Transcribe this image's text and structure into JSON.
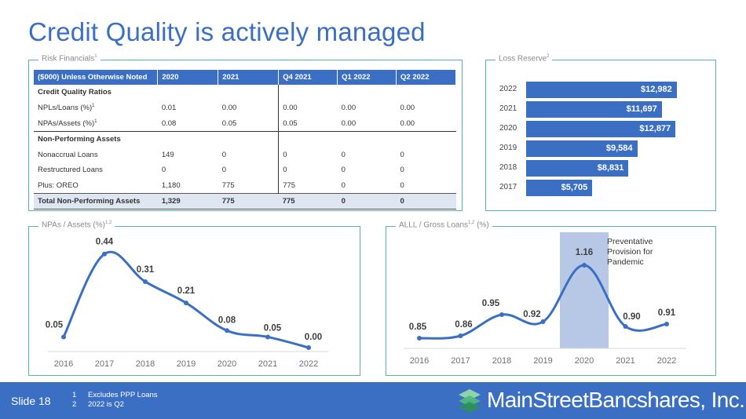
{
  "page": {
    "title": "Credit Quality is actively managed"
  },
  "risk_financials": {
    "label": "Risk Financials",
    "label_sup": "1",
    "headers": [
      "($000) Unless Otherwise Noted",
      "2020",
      "2021",
      "Q4 2021",
      "Q1 2022",
      "Q2 2022"
    ],
    "section1": "Credit Quality Ratios",
    "rows1": [
      {
        "label": "NPLs/Loans (%)",
        "sup": "1",
        "values": [
          "0.01",
          "0.00",
          "0.00",
          "0.00",
          "0.00"
        ]
      },
      {
        "label": "NPAs/Assets (%)",
        "sup": "1",
        "values": [
          "0.08",
          "0.05",
          "0.05",
          "0.00",
          "0.00"
        ]
      }
    ],
    "section2": "Non-Performing Assets",
    "rows2": [
      {
        "label": "Nonaccrual Loans",
        "values": [
          "149",
          "0",
          "0",
          "0",
          "0"
        ]
      },
      {
        "label": "Restructured Loans",
        "values": [
          "0",
          "0",
          "0",
          "0",
          "0"
        ]
      },
      {
        "label": "Plus: OREO",
        "values": [
          "1,180",
          "775",
          "775",
          "0",
          "0"
        ]
      }
    ],
    "total": {
      "label": "Total Non-Performing Assets",
      "values": [
        "1,329",
        "775",
        "775",
        "0",
        "0"
      ]
    }
  },
  "loss_reserve": {
    "label": "Loss Reserve",
    "label_sup": "2"
  },
  "npa_panel": {
    "label": "NPAs / Assets (%)",
    "label_sup": "1,2"
  },
  "alll_panel": {
    "label": "ALLL / Gross Loans",
    "label_sup": "1,2",
    "label_suffix": " (%)",
    "annotation": [
      "Preventative",
      "Provision for",
      "Pandemic"
    ]
  },
  "footer": {
    "slide": "Slide 18",
    "notes": [
      {
        "num": "1",
        "text": "Excludes PPP Loans"
      },
      {
        "num": "2",
        "text": "2022 is Q2"
      }
    ],
    "brand": "MainStreetBancshares, Inc."
  },
  "colors": {
    "accent": "#3a6fc4",
    "panel_border": "#5cb79a",
    "highlight": "#b7c8e6",
    "footer": "#3a6fc4"
  },
  "chart_data": [
    {
      "type": "bar",
      "orientation": "horizontal",
      "categories": [
        "2022",
        "2021",
        "2020",
        "2019",
        "2018",
        "2017"
      ],
      "values": [
        12982,
        11697,
        12877,
        9584,
        8831,
        5705
      ],
      "labels": [
        "$12,982",
        "$11,697",
        "$12,877",
        "$9,584",
        "$8,831",
        "$5,705"
      ],
      "title": "Loss Reserve",
      "xlim": [
        0,
        13000
      ]
    },
    {
      "type": "line",
      "x": [
        "2016",
        "2017",
        "2018",
        "2019",
        "2020",
        "2021",
        "2022"
      ],
      "values": [
        0.05,
        0.44,
        0.31,
        0.21,
        0.08,
        0.05,
        0.0
      ],
      "labels": [
        "0.05",
        "0.44",
        "0.31",
        "0.21",
        "0.08",
        "0.05",
        "0.00"
      ],
      "title": "NPAs / Assets (%)",
      "ylim": [
        0,
        0.45
      ]
    },
    {
      "type": "line",
      "x": [
        "2016",
        "2017",
        "2018",
        "2019",
        "2020",
        "2021",
        "2022"
      ],
      "values": [
        0.85,
        0.86,
        0.95,
        0.92,
        1.16,
        0.9,
        0.91
      ],
      "labels": [
        "0.85",
        "0.86",
        "0.95",
        "0.92",
        "1.16",
        "0.90",
        "0.91"
      ],
      "title": "ALLL / Gross Loans (%)",
      "highlight_category": "2020",
      "ylim": [
        0.75,
        1.2
      ]
    }
  ]
}
